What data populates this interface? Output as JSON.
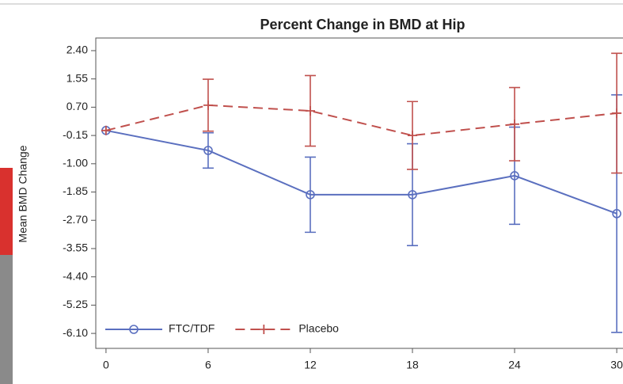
{
  "chart_data": {
    "type": "line",
    "title": "Percent Change in BMD at Hip",
    "y_label": "Mean BMD Change",
    "x": [
      0,
      6,
      12,
      18,
      24,
      30
    ],
    "xlim": [
      -0.6,
      30.6
    ],
    "xticks": [
      0,
      6,
      12,
      18,
      24,
      30
    ],
    "ylim": [
      -6.55,
      2.78
    ],
    "yticks": [
      {
        "value": 2.4,
        "label": "2.40"
      },
      1.55,
      {
        "value": 0.7,
        "label": "0.70"
      },
      -0.15,
      {
        "value": -1.0,
        "label": "-1.00"
      },
      -1.85,
      {
        "value": -2.7,
        "label": "-2.70"
      },
      -3.55,
      {
        "value": -4.4,
        "label": "-4.40"
      },
      -5.25,
      {
        "value": -6.1,
        "label": "-6.10"
      }
    ],
    "series": [
      {
        "name": "FTC/TDF",
        "color": "#5a6fbf",
        "dash": false,
        "marker": "circle",
        "values": [
          0,
          -0.6,
          -1.93,
          -1.93,
          -1.36,
          -2.5
        ],
        "errors": [
          null,
          0.53,
          1.13,
          1.53,
          1.46,
          3.57
        ]
      },
      {
        "name": "Placebo",
        "color": "#c0504d",
        "dash": true,
        "marker": "plus",
        "values": [
          0,
          0.76,
          0.59,
          -0.15,
          0.19,
          0.52
        ],
        "errors": [
          null,
          0.78,
          1.06,
          1.02,
          1.1,
          1.8
        ]
      }
    ]
  }
}
